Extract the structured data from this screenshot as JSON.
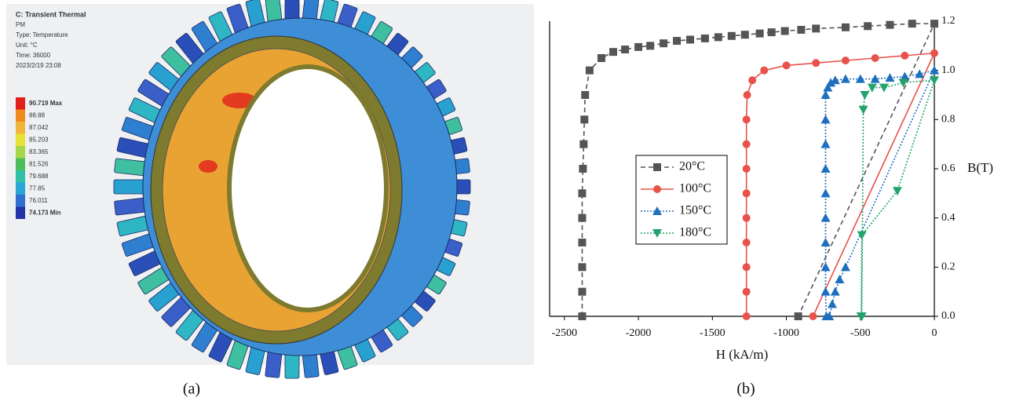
{
  "figure_a": {
    "header": [
      "C: Transient Thermal",
      "PM",
      "Type: Temperature",
      "Unit: °C",
      "Time: 36000",
      "2023/2/19 23:08"
    ],
    "legend": [
      {
        "label": "90.719 Max",
        "color": "#e0201c"
      },
      {
        "label": "88.88",
        "color": "#f08a1e"
      },
      {
        "label": "87.042",
        "color": "#f2b53c"
      },
      {
        "label": "85.203",
        "color": "#e9e236"
      },
      {
        "label": "83.365",
        "color": "#a6d64a"
      },
      {
        "label": "81.526",
        "color": "#4cbf5a"
      },
      {
        "label": "79.688",
        "color": "#2fc0a8"
      },
      {
        "label": "77.85",
        "color": "#29a6d8"
      },
      {
        "label": "76.011",
        "color": "#2f6fd0"
      },
      {
        "label": "74.173 Min",
        "color": "#2434a8"
      }
    ]
  },
  "captions": [
    "(a)",
    "(b)"
  ],
  "chart_data": {
    "type": "line",
    "xlabel": "H (kA/m)",
    "ylabel": "B(T)",
    "xlim": [
      -2600,
      0
    ],
    "ylim": [
      0,
      1.2
    ],
    "xticks": [
      -2500,
      -2000,
      -1500,
      -1000,
      -500,
      0
    ],
    "yticks": [
      {
        "value": 0,
        "label": "0.0"
      },
      0.2,
      0.4,
      0.6,
      0.8,
      {
        "value": 1,
        "label": "1.0"
      },
      1.2
    ],
    "series": [
      {
        "name": "20°C",
        "color": "#555555",
        "linestyle": "dashed",
        "marker": "square",
        "x": [
          -2380,
          -2380,
          -2380,
          -2380,
          -2380,
          -2380,
          -2375,
          -2370,
          -2365,
          -2360,
          -2330,
          -2250,
          -2170,
          -2090,
          -2000,
          -1920,
          -1830,
          -1740,
          -1650,
          -1550,
          -1460,
          -1370,
          -1280,
          -1180,
          -1100,
          -1010,
          -900,
          -800,
          -600,
          -450,
          -300,
          -150,
          0,
          -920
        ],
        "values": [
          0,
          0.1,
          0.2,
          0.3,
          0.4,
          0.5,
          0.6,
          0.7,
          0.8,
          0.9,
          1.0,
          1.05,
          1.075,
          1.085,
          1.095,
          1.1,
          1.11,
          1.12,
          1.125,
          1.13,
          1.135,
          1.14,
          1.145,
          1.15,
          1.155,
          1.16,
          1.165,
          1.17,
          1.175,
          1.18,
          1.185,
          1.19,
          1.19,
          0
        ]
      },
      {
        "name": "100°C",
        "color": "#e8524a",
        "linestyle": "solid",
        "marker": "circle",
        "x": [
          -1270,
          -1270,
          -1270,
          -1270,
          -1270,
          -1270,
          -1270,
          -1270,
          -1270,
          -1265,
          -1230,
          -1150,
          -1000,
          -800,
          -600,
          -400,
          -200,
          0,
          -820
        ],
        "values": [
          0,
          0.1,
          0.2,
          0.3,
          0.4,
          0.5,
          0.6,
          0.7,
          0.8,
          0.9,
          0.96,
          1.0,
          1.02,
          1.03,
          1.04,
          1.05,
          1.06,
          1.07,
          0
        ]
      },
      {
        "name": "150°C",
        "color": "#1f6fbf",
        "linestyle": "dotted",
        "marker": "triangle-up",
        "x": [
          -730,
          -735,
          -735,
          -735,
          -735,
          -735,
          -735,
          -735,
          -735,
          -735,
          -720,
          -700,
          -670,
          -600,
          -500,
          -400,
          -300,
          -200,
          -100,
          0,
          -600,
          -640,
          -670,
          -690,
          -710
        ],
        "values": [
          0,
          0.1,
          0.2,
          0.3,
          0.4,
          0.5,
          0.6,
          0.7,
          0.8,
          0.9,
          0.93,
          0.95,
          0.96,
          0.965,
          0.965,
          0.965,
          0.97,
          0.975,
          0.985,
          1.0,
          0.2,
          0.15,
          0.1,
          0.05,
          0
        ]
      },
      {
        "name": "180°C",
        "color": "#22a36b",
        "linestyle": "dotted",
        "marker": "triangle-down",
        "x": [
          -490,
          -480,
          -470,
          -420,
          -340,
          -210,
          0,
          -250,
          -490,
          -495
        ],
        "values": [
          0,
          0.84,
          0.9,
          0.93,
          0.93,
          0.95,
          0.96,
          0.51,
          0.33,
          0
        ]
      }
    ]
  }
}
